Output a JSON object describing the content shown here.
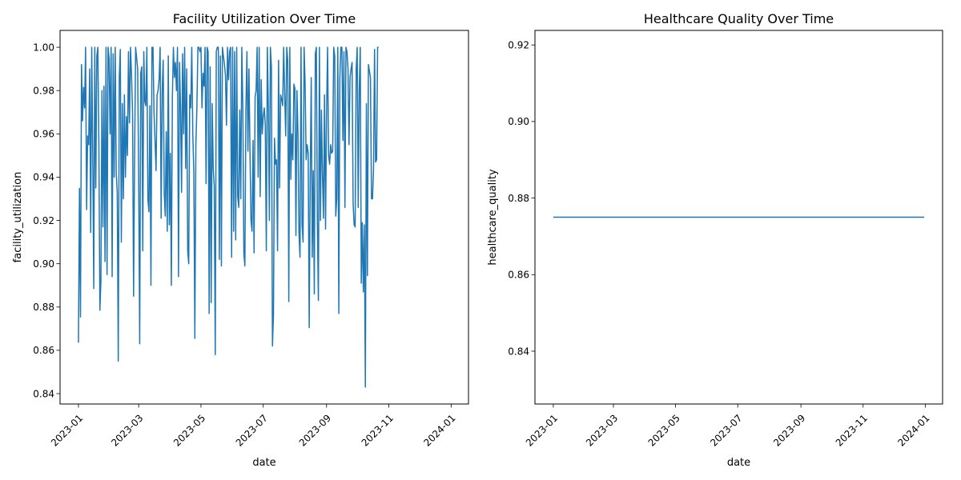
{
  "chart_data": [
    {
      "type": "line",
      "title": "Facility Utilization Over Time",
      "xlabel": "date",
      "ylabel": "facility_utilization",
      "x_range": [
        "2022-12-14",
        "2024-01-18"
      ],
      "y_range": [
        0.8352,
        1.0078
      ],
      "x_ticks": [
        "2023-01",
        "2023-03",
        "2023-05",
        "2023-07",
        "2023-09",
        "2023-11",
        "2024-01"
      ],
      "y_ticks": [
        "0.84",
        "0.86",
        "0.88",
        "0.90",
        "0.92",
        "0.94",
        "0.96",
        "0.98",
        "1.00"
      ],
      "grid": false,
      "color": "#1f77b4",
      "series": [
        {
          "x_start": "2023-01-01",
          "x_step_days": 1,
          "values": [
            0.8635,
            0.9348,
            0.8754,
            0.992,
            0.966,
            0.9815,
            0.972,
            1.0,
            0.925,
            0.959,
            0.955,
            0.99,
            0.9145,
            1.0,
            0.952,
            0.8885,
            1.0,
            0.935,
            0.996,
            1.0,
            0.956,
            0.8785,
            0.892,
            0.98,
            0.917,
            0.982,
            0.901,
            1.0,
            0.895,
            1.0,
            0.995,
            0.96,
            1.0,
            0.894,
            0.997,
            0.94,
            1.0,
            0.942,
            0.933,
            0.855,
            0.986,
            0.999,
            0.91,
            0.974,
            0.93,
            0.978,
            0.94,
            0.968,
            0.95,
            0.998,
            0.965,
            1.0,
            0.987,
            0.97,
            0.885,
            0.95,
            1.0,
            0.995,
            0.99,
            0.939,
            0.863,
            0.988,
            0.991,
            0.906,
            0.998,
            0.975,
            0.973,
            1.0,
            0.93,
            0.924,
            0.973,
            0.89,
            1.0,
            1.0,
            0.97,
            0.957,
            0.943,
            0.978,
            0.98,
            0.985,
            1.0,
            0.921,
            0.98,
            0.994,
            0.933,
            0.922,
            0.961,
            0.915,
            0.996,
            0.918,
            0.951,
            0.89,
            0.977,
            1.0,
            0.986,
            0.993,
            0.98,
            1.0,
            0.894,
            0.993,
            0.972,
            0.933,
            0.997,
            0.96,
            1.0,
            0.944,
            0.99,
            0.906,
            0.9,
            0.978,
            0.972,
            1.0,
            0.96,
            0.942,
            0.8655,
            0.955,
            0.972,
            1.0,
            1.0,
            0.998,
            1.0,
            0.972,
            0.988,
            0.982,
            1.0,
            0.937,
            1.0,
            0.998,
            0.877,
            0.991,
            0.882,
            0.974,
            0.944,
            0.936,
            0.858,
            0.998,
            1.0,
            1.0,
            0.902,
            0.996,
            0.899,
            1.0,
            0.996,
            0.992,
            0.987,
            0.964,
            1.0,
            0.985,
            0.998,
            1.0,
            0.903,
            1.0,
            0.915,
            0.998,
            0.911,
            1.0,
            0.931,
            0.926,
            0.971,
            0.93,
            1.0,
            0.973,
            0.905,
            0.899,
            0.971,
            0.998,
            0.952,
            0.99,
            0.952,
            0.92,
            0.915,
            0.957,
            0.905,
            0.977,
            0.98,
            1.0,
            0.94,
            1.0,
            0.931,
            0.985,
            0.96,
            0.968,
            0.972,
            0.964,
            0.906,
            1.0,
            0.972,
            0.92,
            1.0,
            0.991,
            0.862,
            0.876,
            0.958,
            0.946,
            0.948,
            0.906,
            0.994,
            0.935,
            0.978,
            0.976,
            0.973,
            1.0,
            0.978,
            0.959,
            1.0,
            0.994,
            0.8825,
            1.0,
            0.939,
            0.96,
            0.948,
            0.983,
            0.981,
            0.913,
            0.98,
            0.96,
            0.914,
            0.903,
            1.0,
            0.918,
            0.91,
            1.0,
            0.983,
            0.948,
            0.955,
            0.951,
            0.8705,
            0.94,
            0.986,
            0.903,
            0.943,
            0.886,
            0.997,
            1.0,
            0.919,
            0.883,
            1.0,
            0.92,
            0.971,
            0.941,
            0.921,
            0.978,
            0.916,
            0.97,
            1.0,
            0.95,
            0.946,
            0.955,
            0.951,
            0.952,
            1.0,
            0.996,
            0.922,
            0.93,
            1.0,
            0.877,
            0.986,
            1.0,
            1.0,
            0.957,
            0.998,
            0.926,
            1.0,
            0.998,
            0.99,
            0.955,
            0.986,
            0.99,
            0.993,
            0.928,
            0.918,
            0.917,
            0.99,
            1.0,
            0.926,
            0.98,
            1.0,
            0.891,
            0.919,
            0.887,
            0.918,
            0.843,
            0.974,
            0.8945,
            0.992,
            0.989,
            0.986,
            0.93,
            0.93,
            0.944,
            0.999,
            0.947,
            0.948,
            1.0,
            1.0
          ]
        }
      ]
    },
    {
      "type": "line",
      "title": "Healthcare Quality Over Time",
      "xlabel": "date",
      "ylabel": "healthcare_quality",
      "x_range": [
        "2022-12-14",
        "2024-01-18"
      ],
      "y_range": [
        0.8262,
        0.9238
      ],
      "x_ticks": [
        "2023-01",
        "2023-03",
        "2023-05",
        "2023-07",
        "2023-09",
        "2023-11",
        "2024-01"
      ],
      "y_ticks": [
        "0.84",
        "0.86",
        "0.88",
        "0.90",
        "0.92"
      ],
      "grid": false,
      "color": "#1f77b4",
      "series": [
        {
          "x": [
            "2023-01-01",
            "2023-12-31"
          ],
          "values": [
            0.875,
            0.875
          ]
        }
      ]
    }
  ]
}
